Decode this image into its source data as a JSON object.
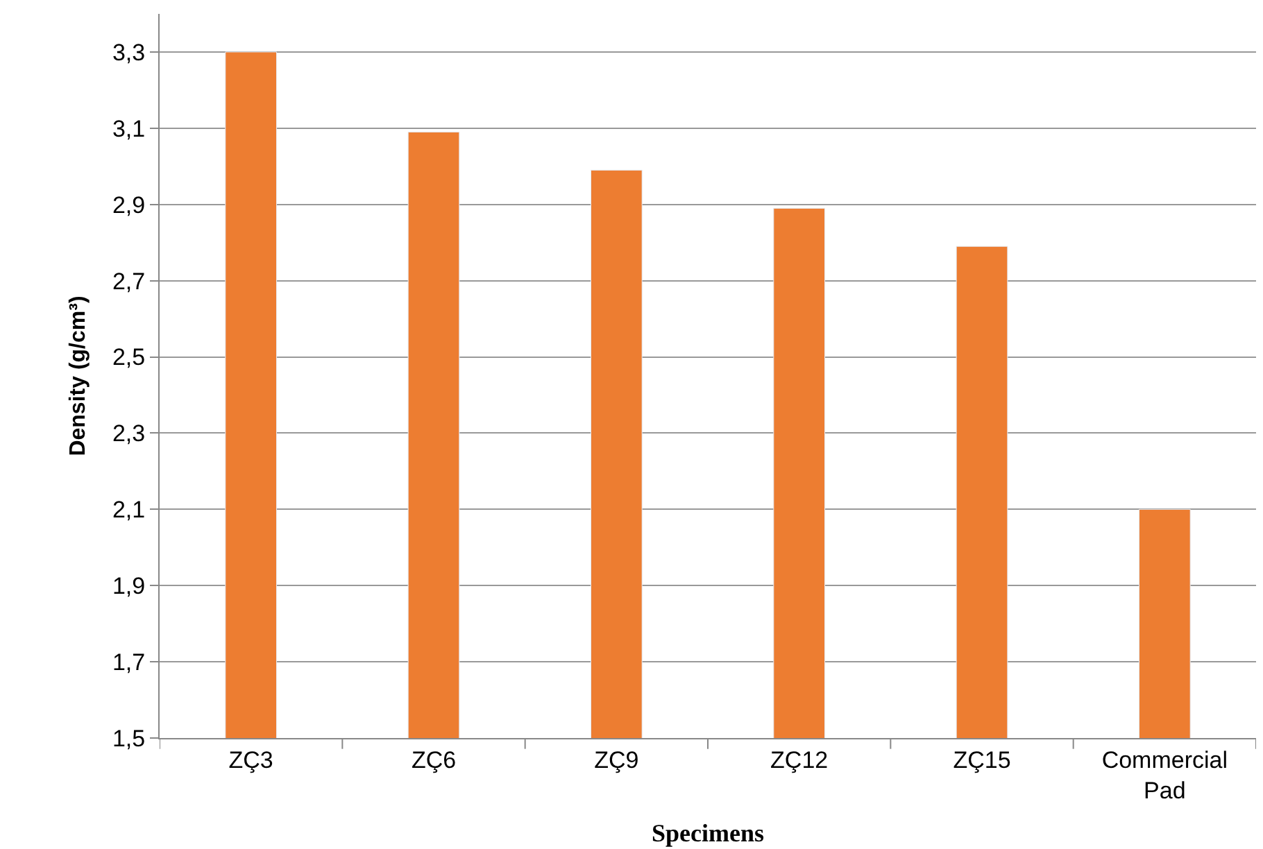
{
  "chart_data": {
    "type": "bar",
    "xlabel": "Specimens",
    "ylabel": "Density (g/cm³)",
    "categories": [
      "ZÇ3",
      "ZÇ6",
      "ZÇ9",
      "ZÇ12",
      "ZÇ15",
      "Commercial Pad"
    ],
    "values": [
      3.3,
      3.09,
      2.99,
      2.89,
      2.79,
      2.1
    ],
    "color": "#ed7d31",
    "ylim": [
      1.5,
      3.4
    ],
    "yticks": [
      {
        "value": 1.5,
        "label": "1,5"
      },
      {
        "value": 1.7,
        "label": "1,7"
      },
      {
        "value": 1.9,
        "label": "1,9"
      },
      {
        "value": 2.1,
        "label": "2,1"
      },
      {
        "value": 2.3,
        "label": "2,3"
      },
      {
        "value": 2.5,
        "label": "2,5"
      },
      {
        "value": 2.7,
        "label": "2,7"
      },
      {
        "value": 2.9,
        "label": "2,9"
      },
      {
        "value": 3.1,
        "label": "3,1"
      },
      {
        "value": 3.3,
        "label": "3,3"
      }
    ],
    "grid": "y"
  }
}
